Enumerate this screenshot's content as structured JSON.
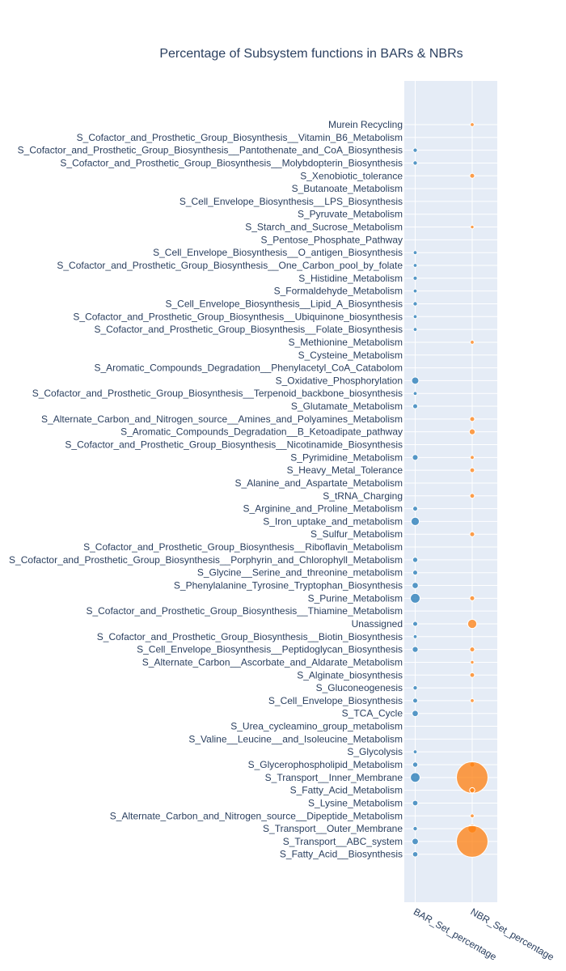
{
  "chart_data": {
    "type": "scatter",
    "title": "Percentage of Subsystem functions in BARs & NBRs",
    "x_categories": [
      "BAR_Set_percentage",
      "NBR_Set_percentage"
    ],
    "y_categories": [
      "Murein Recycling",
      "S_Cofactor_and_Prosthetic_Group_Biosynthesis__Vitamin_B6_Metabolism",
      "S_Cofactor_and_Prosthetic_Group_Biosynthesis__Pantothenate_and_CoA_Biosynthesis",
      "S_Cofactor_and_Prosthetic_Group_Biosynthesis__Molybdopterin_Biosynthesis",
      "S_Xenobiotic_tolerance",
      "S_Butanoate_Metabolism",
      "S_Cell_Envelope_Biosynthesis__LPS_Biosynthesis",
      "S_Pyruvate_Metabolism",
      "S_Starch_and_Sucrose_Metabolism",
      "S_Pentose_Phosphate_Pathway",
      "S_Cell_Envelope_Biosynthesis__O_antigen_Biosynthesis",
      "S_Cofactor_and_Prosthetic_Group_Biosynthesis__One_Carbon_pool_by_folate",
      "S_Histidine_Metabolism",
      "S_Formaldehyde_Metabolism",
      "S_Cell_Envelope_Biosynthesis__Lipid_A_Biosynthesis",
      "S_Cofactor_and_Prosthetic_Group_Biosynthesis__Ubiquinone_biosynthesis",
      "S_Cofactor_and_Prosthetic_Group_Biosynthesis__Folate_Biosynthesis",
      "S_Methionine_Metabolism",
      "S_Cysteine_Metabolism",
      "S_Aromatic_Compounds_Degradation__Phenylacetyl_CoA_Catabolom",
      "S_Oxidative_Phosphorylation",
      "S_Cofactor_and_Prosthetic_Group_Biosynthesis__Terpenoid_backbone_biosynthesis",
      "S_Glutamate_Metabolism",
      "S_Alternate_Carbon_and_Nitrogen_source__Amines_and_Polyamines_Metabolism",
      "S_Aromatic_Compounds_Degradation__B_Ketoadipate_pathway",
      "S_Cofactor_and_Prosthetic_Group_Biosynthesis__Nicotinamide_Biosynthesis",
      "S_Pyrimidine_Metabolism",
      "S_Heavy_Metal_Tolerance",
      "S_Alanine_and_Aspartate_Metabolism",
      "S_tRNA_Charging",
      "S_Arginine_and_Proline_Metabolism",
      "S_Iron_uptake_and_metabolism",
      "S_Sulfur_Metabolism",
      "S_Cofactor_and_Prosthetic_Group_Biosynthesis__Riboflavin_Metabolism",
      "S_Cofactor_and_Prosthetic_Group_Biosynthesis__Porphyrin_and_Chlorophyll_Metabolism",
      "S_Glycine__Serine_and_threonine_metabolism",
      "S_Phenylalanine_Tyrosine_Tryptophan_Biosynthesis",
      "S_Purine_Metabolism",
      "S_Cofactor_and_Prosthetic_Group_Biosynthesis__Thiamine_Metabolism",
      "Unassigned",
      "S_Cofactor_and_Prosthetic_Group_Biosynthesis__Biotin_Biosynthesis",
      "S_Cell_Envelope_Biosynthesis__Peptidoglycan_Biosynthesis",
      "S_Alternate_Carbon__Ascorbate_and_Aldarate_Metabolism",
      "S_Alginate_biosynthesis",
      "S_Gluconeogenesis",
      "S_Cell_Envelope_Biosynthesis",
      "S_TCA_Cycle",
      "S_Urea_cycleamino_group_metabolism",
      "S_Valine__Leucine__and_Isoleucine_Metabolism",
      "S_Glycolysis",
      "S_Glycerophospholipid_Metabolism",
      "S_Transport__Inner_Membrane",
      "S_Fatty_Acid_Metabolism",
      "S_Lysine_Metabolism",
      "S_Alternate_Carbon_and_Nitrogen_source__Dipeptide_Metabolism",
      "S_Transport__Outer_Membrane",
      "S_Transport__ABC_system",
      "S_Fatty_Acid__Biosynthesis"
    ],
    "series": [
      {
        "x_category": "BAR_Set_percentage",
        "color": "#1f77b4",
        "values": [
          0,
          0,
          0.5,
          0.5,
          0,
          0,
          0,
          0,
          0,
          0,
          0.3,
          0.3,
          0.4,
          0.3,
          0.5,
          0.3,
          0.3,
          0,
          0,
          0,
          2.8,
          0.3,
          0.8,
          0,
          0,
          0,
          1.4,
          0,
          0,
          0,
          0.8,
          4.2,
          0,
          0,
          1.0,
          0.8,
          1.8,
          6.5,
          0,
          0.8,
          0.3,
          1.5,
          0,
          0,
          0.5,
          0.8,
          1.8,
          0,
          0,
          0.3,
          1.0,
          6.3,
          0,
          1.2,
          0,
          0.5,
          2.0,
          1.1
        ]
      },
      {
        "x_category": "NBR_Set_percentage",
        "color": "#ff7f0e",
        "values": [
          0.3,
          0,
          0,
          0,
          0.8,
          0,
          0,
          0,
          0.2,
          0,
          0,
          0,
          0,
          0,
          0,
          0,
          0,
          0.3,
          0,
          0,
          0,
          0,
          0,
          0.8,
          1.5,
          0,
          0.3,
          0.7,
          0,
          0.7,
          0,
          0,
          0.8,
          0,
          0,
          0,
          0,
          0.8,
          0,
          5.5,
          0,
          0.8,
          0.2,
          0.7,
          0,
          0.3,
          0,
          0,
          0,
          0,
          0.8,
          100,
          1.0,
          0,
          0.3,
          4.5,
          100,
          0
        ]
      }
    ]
  }
}
